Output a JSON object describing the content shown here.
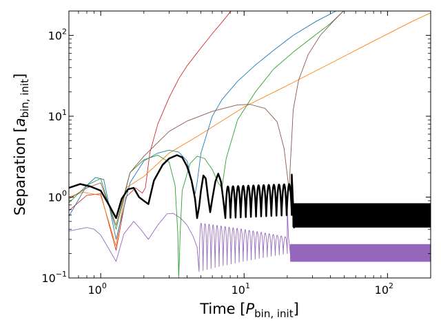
{
  "chart_data": {
    "type": "line",
    "title": "",
    "xlabel": {
      "main": "Time [",
      "var": "P",
      "sub": "bin, init",
      "close": "]"
    },
    "ylabel": {
      "main": "Separation [",
      "var": "a",
      "sub": "bin, init",
      "close": "]"
    },
    "xscale": "log",
    "yscale": "log",
    "xlim": [
      0.6,
      200
    ],
    "ylim": [
      0.1,
      200
    ],
    "x_ticks": [
      {
        "value": 1,
        "base": "10",
        "exp": "0"
      },
      {
        "value": 10,
        "base": "10",
        "exp": "1"
      },
      {
        "value": 100,
        "base": "10",
        "exp": "2"
      }
    ],
    "y_ticks": [
      {
        "value": 0.1,
        "base": "10",
        "exp": "−1"
      },
      {
        "value": 1,
        "base": "10",
        "exp": "0"
      },
      {
        "value": 10,
        "base": "10",
        "exp": "1"
      },
      {
        "value": 100,
        "base": "10",
        "exp": "2"
      }
    ],
    "grid": false,
    "legend": "none",
    "series": [
      {
        "name": "binary",
        "color": "#000000",
        "width": 2.5,
        "points": [
          [
            0.6,
            1.3
          ],
          [
            0.72,
            1.45
          ],
          [
            0.85,
            1.35
          ],
          [
            1.0,
            1.2
          ],
          [
            1.12,
            0.85
          ],
          [
            1.28,
            0.55
          ],
          [
            1.4,
            0.95
          ],
          [
            1.55,
            1.25
          ],
          [
            1.7,
            1.3
          ],
          [
            1.85,
            1.0
          ],
          [
            2.0,
            0.9
          ],
          [
            2.15,
            0.82
          ],
          [
            2.35,
            1.6
          ],
          [
            2.7,
            2.5
          ],
          [
            3.0,
            3.0
          ],
          [
            3.4,
            3.3
          ],
          [
            3.7,
            3.1
          ],
          [
            4.0,
            2.4
          ],
          [
            4.3,
            1.6
          ],
          [
            4.55,
            0.95
          ],
          [
            4.7,
            0.55
          ],
          [
            4.85,
            0.75
          ],
          [
            5.0,
            1.2
          ],
          [
            5.2,
            1.85
          ],
          [
            5.4,
            1.7
          ],
          [
            5.6,
            1.0
          ],
          [
            5.8,
            0.65
          ],
          [
            6.0,
            0.95
          ],
          [
            6.3,
            1.55
          ],
          [
            6.6,
            1.95
          ],
          [
            6.9,
            1.55
          ],
          [
            7.2,
            0.85
          ],
          [
            7.4,
            0.55
          ]
        ],
        "osc": {
          "from": 7.4,
          "to": 21.5,
          "cycles": 13,
          "lo_start": 0.55,
          "lo_end": 0.6,
          "hi_start": 1.35,
          "hi_end": 1.45,
          "sharp": 2.5
        },
        "tail": [
          [
            21.5,
            1.9
          ],
          [
            21.9,
            0.9
          ],
          [
            22.3,
            0.42
          ],
          [
            23,
            0.6
          ]
        ],
        "band": {
          "from": 22,
          "to": 200,
          "lo": 0.43,
          "hi": 0.82,
          "cycles": 380
        }
      },
      {
        "name": "inner-pair",
        "color": "#9467bd",
        "width": 0.9,
        "points": [
          [
            0.6,
            0.38
          ],
          [
            0.8,
            0.42
          ],
          [
            0.9,
            0.4
          ],
          [
            1.0,
            0.34
          ],
          [
            1.28,
            0.16
          ],
          [
            1.45,
            0.35
          ],
          [
            1.7,
            0.5
          ],
          [
            1.9,
            0.4
          ],
          [
            2.15,
            0.3
          ],
          [
            2.5,
            0.45
          ],
          [
            2.9,
            0.62
          ],
          [
            3.2,
            0.63
          ],
          [
            3.6,
            0.55
          ],
          [
            4.0,
            0.45
          ],
          [
            4.4,
            0.33
          ],
          [
            4.7,
            0.24
          ],
          [
            4.85,
            0.12
          ]
        ],
        "osc": {
          "from": 4.85,
          "to": 20,
          "cycles": 22,
          "lo_start": 0.12,
          "lo_end": 0.2,
          "hi_start": 0.48,
          "hi_end": 0.32,
          "sharp": 3
        },
        "tail": [
          [
            20,
            0.72
          ],
          [
            20.4,
            0.32
          ],
          [
            21,
            0.2
          ]
        ],
        "band": {
          "from": 21,
          "to": 200,
          "lo": 0.16,
          "hi": 0.26,
          "cycles": 420
        }
      },
      {
        "name": "red-escape",
        "color": "#d62728",
        "width": 0.9,
        "points": [
          [
            0.6,
            0.68
          ],
          [
            0.8,
            1.05
          ],
          [
            1.0,
            1.1
          ],
          [
            1.28,
            0.22
          ],
          [
            1.5,
            1.0
          ],
          [
            1.75,
            1.3
          ],
          [
            1.95,
            1.12
          ],
          [
            2.05,
            1.3
          ],
          [
            2.2,
            3.5
          ],
          [
            2.5,
            8.0
          ],
          [
            3.0,
            17
          ],
          [
            3.5,
            29
          ],
          [
            4.0,
            42
          ],
          [
            5.0,
            70
          ],
          [
            6.0,
            105
          ],
          [
            7.0,
            145
          ],
          [
            8.0,
            195
          ],
          [
            8.2,
            205
          ]
        ]
      },
      {
        "name": "orange-escape",
        "color": "#ff7f0e",
        "width": 0.9,
        "points": [
          [
            0.6,
            1.0
          ],
          [
            0.75,
            1.15
          ],
          [
            1.0,
            1.05
          ],
          [
            1.28,
            0.25
          ],
          [
            1.5,
            1.3
          ],
          [
            2.0,
            1.8
          ],
          [
            3.0,
            3.5
          ],
          [
            5.0,
            6.0
          ],
          [
            10,
            13
          ],
          [
            20,
            24
          ],
          [
            40,
            45
          ],
          [
            80,
            85
          ],
          [
            150,
            150
          ],
          [
            200,
            190
          ]
        ]
      },
      {
        "name": "blue-escape",
        "color": "#1f77b4",
        "width": 0.9,
        "points": [
          [
            0.6,
            0.58
          ],
          [
            0.8,
            1.4
          ],
          [
            0.92,
            1.75
          ],
          [
            1.05,
            1.65
          ],
          [
            1.28,
            0.3
          ],
          [
            1.6,
            1.5
          ],
          [
            2.0,
            2.8
          ],
          [
            2.5,
            3.5
          ],
          [
            3.0,
            3.8
          ],
          [
            3.5,
            3.6
          ],
          [
            4.0,
            2.8
          ],
          [
            4.4,
            1.4
          ],
          [
            4.55,
            1.1
          ],
          [
            4.7,
            1.5
          ],
          [
            5.0,
            3.5
          ],
          [
            6.0,
            10
          ],
          [
            7.0,
            16
          ],
          [
            9.0,
            27
          ],
          [
            12,
            43
          ],
          [
            16,
            65
          ],
          [
            22,
            100
          ],
          [
            32,
            150
          ],
          [
            45,
            205
          ]
        ]
      },
      {
        "name": "green-escape",
        "color": "#2ca02c",
        "width": 0.9,
        "points": [
          [
            0.6,
            0.85
          ],
          [
            0.8,
            1.4
          ],
          [
            1.0,
            1.7
          ],
          [
            1.28,
            0.4
          ],
          [
            1.6,
            2.0
          ],
          [
            2.0,
            2.9
          ],
          [
            2.5,
            3.3
          ],
          [
            3.0,
            2.7
          ],
          [
            3.3,
            1.4
          ],
          [
            3.45,
            0.35
          ],
          [
            3.5,
            0.1
          ],
          [
            3.58,
            0.35
          ],
          [
            3.7,
            1.2
          ],
          [
            4.2,
            2.6
          ],
          [
            4.7,
            3.2
          ],
          [
            5.3,
            3.0
          ],
          [
            6.0,
            2.2
          ],
          [
            6.6,
            1.5
          ],
          [
            7.0,
            1.3
          ],
          [
            7.5,
            3.0
          ],
          [
            9.0,
            9.0
          ],
          [
            12,
            20
          ],
          [
            16,
            38
          ],
          [
            22,
            62
          ],
          [
            30,
            95
          ],
          [
            40,
            140
          ],
          [
            50,
            205
          ]
        ]
      },
      {
        "name": "brown-escape",
        "color": "#8c564b",
        "width": 0.9,
        "points": [
          [
            0.6,
            0.95
          ],
          [
            0.8,
            1.3
          ],
          [
            1.0,
            1.5
          ],
          [
            1.28,
            0.45
          ],
          [
            1.6,
            2.0
          ],
          [
            2.0,
            3.2
          ],
          [
            3.0,
            6.5
          ],
          [
            4.0,
            8.7
          ],
          [
            6.0,
            11.5
          ],
          [
            9.0,
            13.8
          ],
          [
            11,
            14.0
          ],
          [
            14,
            12.5
          ],
          [
            17,
            8.5
          ],
          [
            19,
            4.0
          ],
          [
            20.3,
            1.5
          ],
          [
            20.6,
            1.2
          ],
          [
            21,
            2.5
          ],
          [
            22,
            12
          ],
          [
            24,
            28
          ],
          [
            28,
            58
          ],
          [
            34,
            100
          ],
          [
            42,
            150
          ],
          [
            50,
            205
          ]
        ]
      }
    ]
  }
}
